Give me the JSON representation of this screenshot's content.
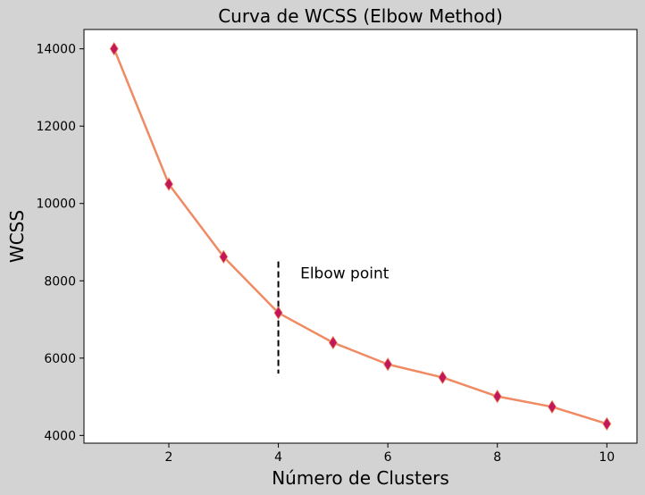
{
  "chart_data": {
    "type": "line",
    "title": "Curva de WCSS (Elbow Method)",
    "xlabel": "Número de Clusters",
    "ylabel": "WCSS",
    "x": [
      1,
      2,
      3,
      4,
      5,
      6,
      7,
      8,
      9,
      10
    ],
    "series": [
      {
        "values": [
          14000,
          10500,
          8620,
          7170,
          6400,
          5840,
          5500,
          5010,
          4740,
          4300
        ]
      }
    ],
    "xlim": [
      0.45,
      10.55
    ],
    "ylim": [
      3800,
      14500
    ],
    "xticks": [
      2,
      4,
      6,
      8,
      10
    ],
    "yticks": [
      4000,
      6000,
      8000,
      10000,
      12000,
      14000
    ],
    "grid": false,
    "line_color": "#ef8a62",
    "marker_color": "#c2185b",
    "marker": "diamond",
    "annotation": {
      "text": "Elbow point",
      "text_x": 4.4,
      "text_y": 8200,
      "vline_x": 4,
      "vline_ymin": 5600,
      "vline_ymax": 8500
    }
  }
}
